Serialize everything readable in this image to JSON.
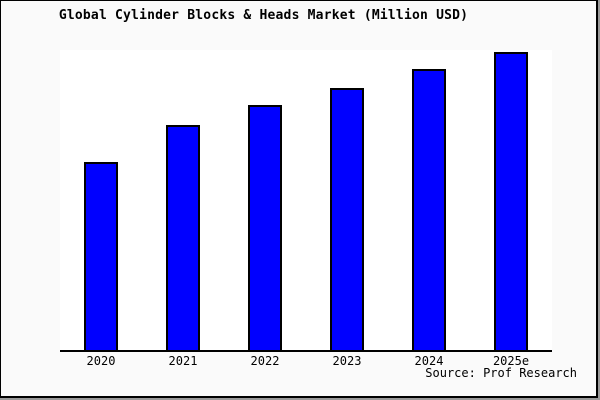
{
  "window": {
    "background_color": "#fafafa",
    "plot_background_color": "#ffffff",
    "frame_border_color": "#000000",
    "frame_shadow_color": "#9a9a9a"
  },
  "title": "Global Cylinder Blocks & Heads Market (Million USD)",
  "source": "Source: Prof Research",
  "chart_data": {
    "type": "bar",
    "title": "Global Cylinder Blocks & Heads Market (Million USD)",
    "categories": [
      "2020",
      "2021",
      "2022",
      "2023",
      "2024",
      "2025e"
    ],
    "values": [
      63.2,
      75.6,
      82.3,
      88.0,
      94.3,
      100
    ],
    "value_note": "No y-axis ticks or labels are rendered; values are relative bar heights with 2025e = 100.",
    "xlabel": "",
    "ylabel": "",
    "ylim": [
      0,
      100
    ],
    "grid": false,
    "legend_position": "none",
    "bar_color": "#0000ff",
    "bar_edge_color": "#000000",
    "source_label": "Source: Prof Research"
  }
}
